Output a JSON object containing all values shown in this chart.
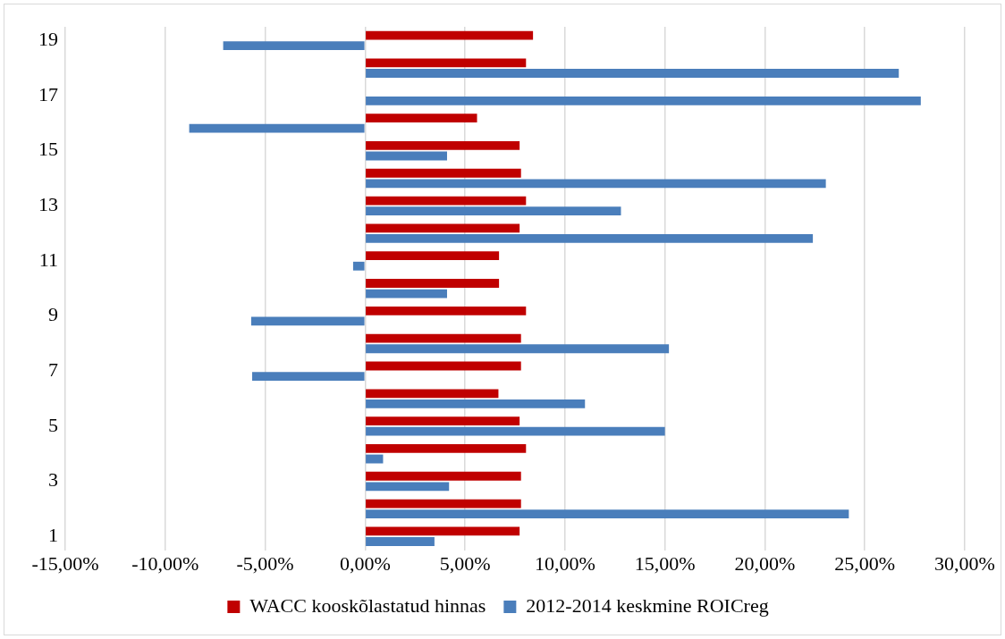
{
  "chart_data": {
    "type": "bar",
    "orientation": "horizontal",
    "categories": [
      "19",
      null,
      "17",
      null,
      "15",
      null,
      "13",
      null,
      "11",
      null,
      "9",
      null,
      "7",
      null,
      "5",
      null,
      "3",
      null,
      "1"
    ],
    "series": [
      {
        "name": "WACC kooskõlastatud hinnas",
        "color": "#c00000",
        "values": [
          8.4,
          8.05,
          null,
          5.6,
          7.73,
          7.8,
          8.05,
          7.73,
          6.7,
          6.7,
          8.05,
          7.8,
          7.8,
          6.67,
          7.73,
          8.05,
          7.8,
          7.8,
          7.73
        ]
      },
      {
        "name": "2012-2014 keskmine ROICreg",
        "color": "#4a7ebb",
        "values": [
          -7.1,
          26.7,
          27.8,
          -8.8,
          4.1,
          23.05,
          12.8,
          22.4,
          -0.6,
          4.1,
          -5.7,
          15.2,
          -5.65,
          11.0,
          15.0,
          0.9,
          4.2,
          24.2,
          3.47
        ]
      }
    ],
    "xlim": [
      -15,
      30
    ],
    "xticks": [
      {
        "value": -15,
        "label": "-15,00%"
      },
      {
        "value": -10,
        "label": "-10,00%"
      },
      {
        "value": -5,
        "label": "-5,00%"
      },
      {
        "value": 0,
        "label": "0,00%"
      },
      {
        "value": 5,
        "label": "5,00%"
      },
      {
        "value": 10,
        "label": "10,00%"
      },
      {
        "value": 15,
        "label": "15,00%"
      },
      {
        "value": 20,
        "label": "20,00%"
      },
      {
        "value": 25,
        "label": "25,00%"
      },
      {
        "value": 30,
        "label": "30,00%"
      }
    ],
    "grid": "x",
    "legend": "bottom"
  }
}
